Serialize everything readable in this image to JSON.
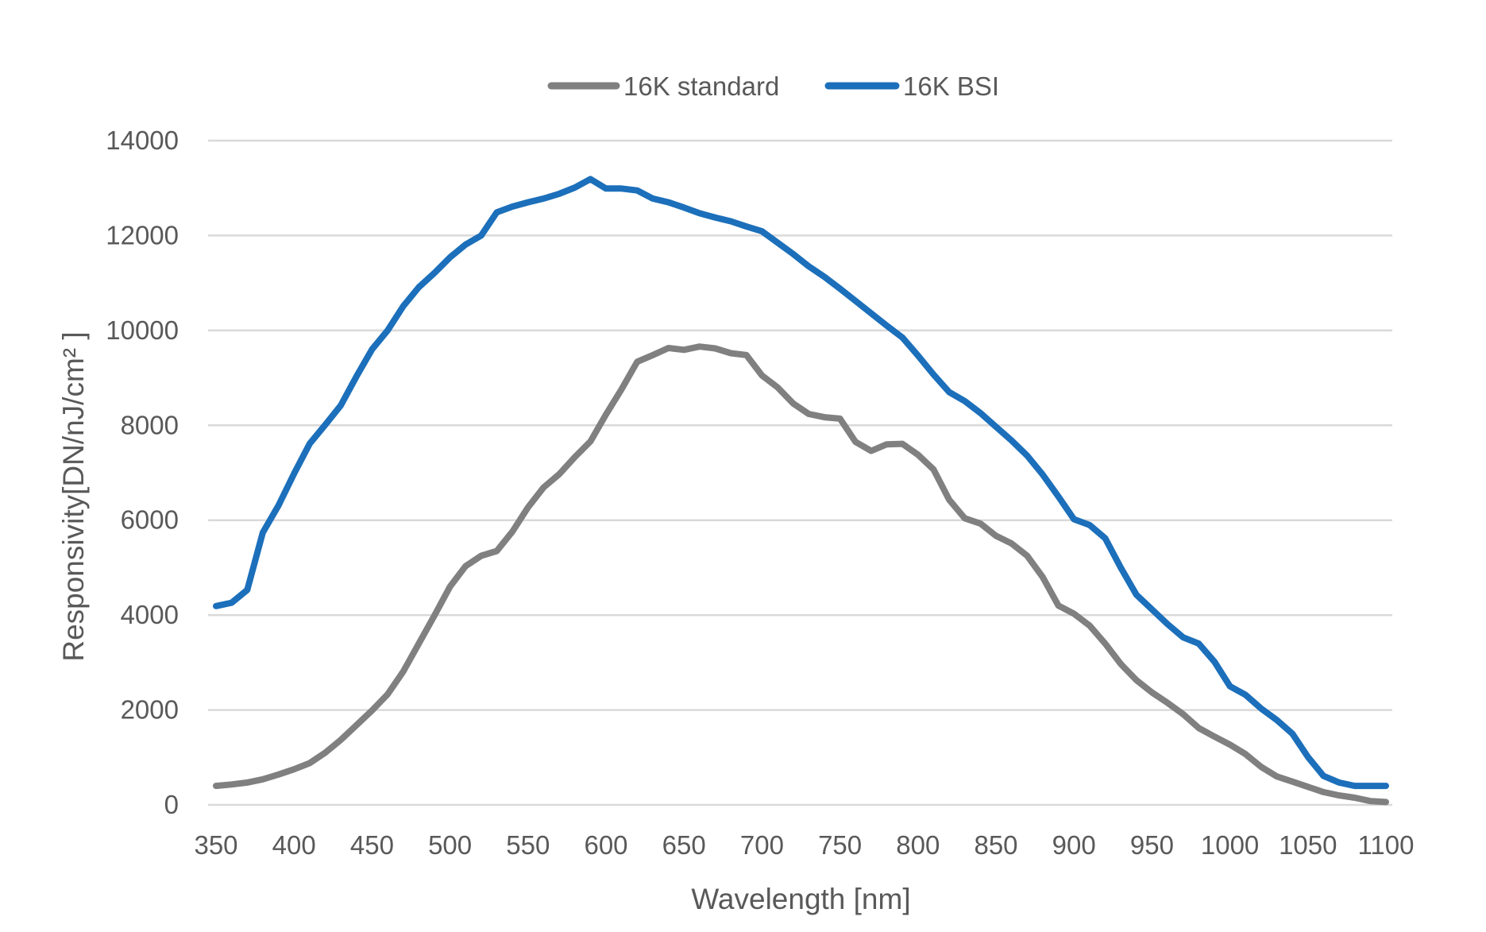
{
  "chart_data": {
    "type": "line",
    "xlabel": "Wavelength [nm]",
    "ylabel": "Responsivity[DN/nJ/cm² ]",
    "xlim": [
      350,
      1100
    ],
    "ylim": [
      0,
      14000
    ],
    "xticks": [
      350,
      400,
      450,
      500,
      550,
      600,
      650,
      700,
      750,
      800,
      850,
      900,
      950,
      1000,
      1050,
      1100
    ],
    "yticks": [
      0,
      2000,
      4000,
      6000,
      8000,
      10000,
      12000,
      14000
    ],
    "grid": "horizontal",
    "legend_position": "top",
    "x": [
      350,
      360,
      370,
      380,
      390,
      400,
      410,
      420,
      430,
      440,
      450,
      460,
      470,
      480,
      490,
      500,
      510,
      520,
      530,
      540,
      550,
      560,
      570,
      580,
      590,
      600,
      610,
      620,
      630,
      640,
      650,
      660,
      670,
      680,
      690,
      700,
      710,
      720,
      730,
      740,
      750,
      760,
      770,
      780,
      790,
      800,
      810,
      820,
      830,
      840,
      850,
      860,
      870,
      880,
      890,
      900,
      910,
      920,
      930,
      940,
      950,
      960,
      970,
      980,
      990,
      1000,
      1010,
      1020,
      1030,
      1040,
      1050,
      1060,
      1070,
      1080,
      1090,
      1100
    ],
    "series": [
      {
        "name": "16K standard",
        "color": "#808080",
        "values": [
          400,
          430,
          470,
          540,
          640,
          750,
          880,
          1100,
          1370,
          1680,
          1990,
          2330,
          2810,
          3400,
          3990,
          4600,
          5030,
          5250,
          5350,
          5760,
          6270,
          6690,
          6970,
          7330,
          7660,
          8230,
          8760,
          9340,
          9480,
          9630,
          9590,
          9660,
          9620,
          9520,
          9480,
          9050,
          8800,
          8460,
          8240,
          8170,
          8140,
          7650,
          7460,
          7600,
          7610,
          7380,
          7070,
          6430,
          6040,
          5930,
          5670,
          5510,
          5250,
          4800,
          4200,
          4030,
          3780,
          3400,
          2970,
          2630,
          2370,
          2150,
          1910,
          1620,
          1440,
          1270,
          1070,
          800,
          600,
          490,
          380,
          270,
          200,
          150,
          80,
          60
        ]
      },
      {
        "name": "16K BSI",
        "color": "#1C6FBA",
        "values": [
          4190,
          4260,
          4530,
          5740,
          6310,
          6980,
          7610,
          8010,
          8420,
          9030,
          9600,
          10000,
          10510,
          10910,
          11210,
          11540,
          11810,
          12000,
          12490,
          12610,
          12700,
          12780,
          12880,
          13010,
          13190,
          12990,
          12990,
          12950,
          12780,
          12700,
          12590,
          12470,
          12380,
          12300,
          12190,
          12090,
          11850,
          11610,
          11350,
          11130,
          10880,
          10620,
          10360,
          10100,
          9850,
          9470,
          9070,
          8700,
          8510,
          8260,
          7970,
          7680,
          7360,
          6960,
          6500,
          6020,
          5900,
          5620,
          5000,
          4430,
          4120,
          3810,
          3530,
          3400,
          3020,
          2500,
          2320,
          2030,
          1790,
          1500,
          1010,
          610,
          470,
          400,
          400,
          400
        ]
      }
    ]
  }
}
